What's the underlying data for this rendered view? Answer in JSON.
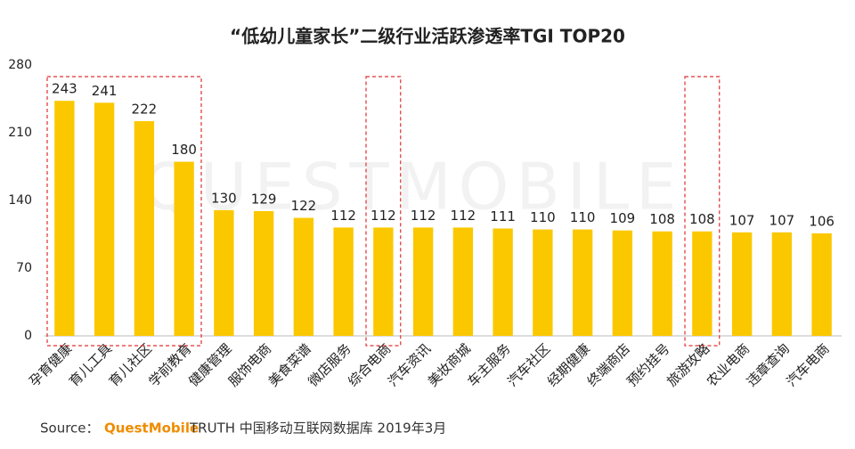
{
  "chart_data": {
    "type": "bar",
    "title": "“低幼儿童家长”二级行业活跃渗透率TGI TOP20",
    "watermark": "QUESTMOBILE",
    "categories": [
      "孕育健康",
      "育儿工具",
      "育儿社区",
      "学前教育",
      "健康管理",
      "服饰电商",
      "美食菜谱",
      "微店服务",
      "综合电商",
      "汽车资讯",
      "美妆商城",
      "车主服务",
      "汽车社区",
      "经期健康",
      "终端商店",
      "预约挂号",
      "旅游攻略",
      "农业电商",
      "违章查询",
      "汽车电商"
    ],
    "values": [
      243,
      241,
      222,
      180,
      130,
      129,
      122,
      112,
      112,
      112,
      112,
      111,
      110,
      110,
      109,
      108,
      108,
      107,
      107,
      106
    ],
    "color": "#FBC800",
    "ylim": [
      0,
      280
    ],
    "yticks": [
      0,
      70,
      140,
      210,
      280
    ],
    "grid": false,
    "source": {
      "label": "Source：",
      "brand": "QuestMobile",
      "text": "TRUTH 中国移动互联网数据库 2019年3月"
    }
  }
}
